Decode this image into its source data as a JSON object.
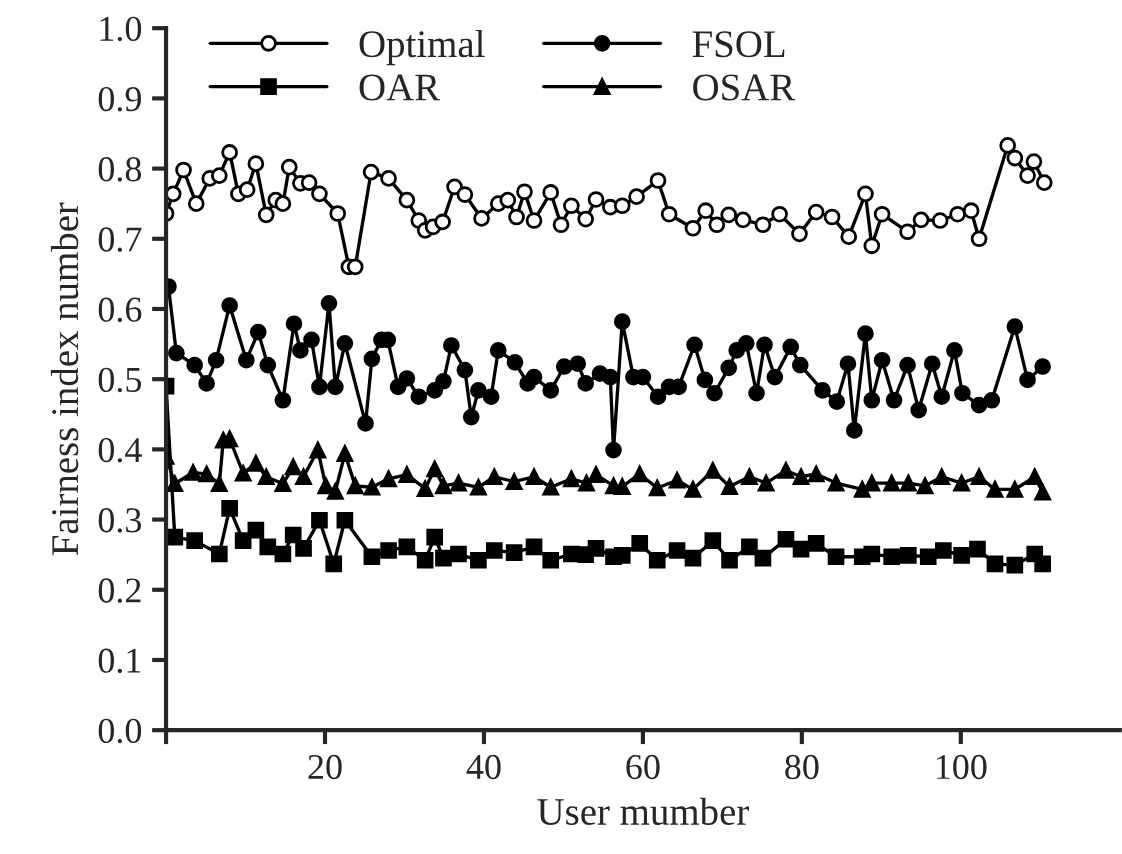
{
  "chart_data": {
    "type": "line",
    "xlabel": "User mumber",
    "ylabel": "Fairness index number",
    "xlim": [
      0,
      120
    ],
    "xticks": [
      {
        "value": 0,
        "label": null
      },
      20,
      40,
      60,
      80,
      100
    ],
    "ylim": [
      0,
      1
    ],
    "yticks": [
      {
        "value": 0,
        "label": "0.0"
      },
      {
        "value": 0.1,
        "label": "0.1"
      },
      {
        "value": 0.2,
        "label": "0.2"
      },
      {
        "value": 0.3,
        "label": "0.3"
      },
      {
        "value": 0.4,
        "label": "0.4"
      },
      {
        "value": 0.5,
        "label": "0.5"
      },
      {
        "value": 0.6,
        "label": "0.6"
      },
      {
        "value": 0.7,
        "label": "0.7"
      },
      {
        "value": 0.8,
        "label": "0.8"
      },
      {
        "value": 0.9,
        "label": "0.9"
      },
      {
        "value": 1.0,
        "label": "1.0"
      }
    ],
    "grid": false,
    "legend": "top left",
    "line_style": "solid",
    "series": [
      {
        "name": "Optimal",
        "color": "#000000",
        "marker": "circle",
        "x": [
          0,
          0.9,
          2.2,
          3.8,
          5.5,
          6.7,
          8,
          9.1,
          10.2,
          11.3,
          12.6,
          13.8,
          14.7,
          15.5,
          16.9,
          18,
          19.3,
          21.6,
          23,
          23.8,
          25.8,
          28,
          30.3,
          31.8,
          32.6,
          33.6,
          34.8,
          36.3,
          37.6,
          39.7,
          41.8,
          43,
          44.1,
          45.1,
          46.3,
          48.4,
          49.7,
          51,
          52.8,
          54.1,
          55.9,
          57.4,
          59.2,
          61.9,
          63.3,
          66.3,
          67.9,
          69.3,
          70.8,
          72.6,
          75.1,
          77.2,
          79.7,
          81.8,
          83.8,
          85.9,
          88,
          88.8,
          90.1,
          93.3,
          95,
          97.4,
          99.6,
          101.3,
          102.3,
          105.9,
          106.8,
          108.4,
          109.2,
          110.5
        ],
        "values": [
          0.736,
          0.764,
          0.798,
          0.75,
          0.786,
          0.79,
          0.823,
          0.764,
          0.77,
          0.807,
          0.734,
          0.755,
          0.75,
          0.802,
          0.779,
          0.78,
          0.764,
          0.736,
          0.66,
          0.66,
          0.795,
          0.786,
          0.755,
          0.726,
          0.712,
          0.717,
          0.724,
          0.774,
          0.763,
          0.729,
          0.75,
          0.755,
          0.731,
          0.767,
          0.726,
          0.766,
          0.72,
          0.747,
          0.728,
          0.756,
          0.745,
          0.747,
          0.76,
          0.783,
          0.735,
          0.715,
          0.74,
          0.72,
          0.734,
          0.727,
          0.72,
          0.735,
          0.707,
          0.738,
          0.731,
          0.703,
          0.764,
          0.69,
          0.735,
          0.71,
          0.727,
          0.726,
          0.735,
          0.74,
          0.7,
          0.833,
          0.815,
          0.79,
          0.81,
          0.78
        ]
      },
      {
        "name": "FSOL",
        "color": "#000000",
        "marker": "circle",
        "x": [
          0.3,
          1.3,
          3.6,
          5.1,
          6.3,
          8,
          10.1,
          11.6,
          12.8,
          14.7,
          16.1,
          16.9,
          18.3,
          19.3,
          20.5,
          21.3,
          22.5,
          25.1,
          25.9,
          27.1,
          27.9,
          29.2,
          30.3,
          31.8,
          33.8,
          34.9,
          35.9,
          37.6,
          38.4,
          39.3,
          40.9,
          41.8,
          43.9,
          45.5,
          46.3,
          48.4,
          50.1,
          51.8,
          52.8,
          54.6,
          55.9,
          56.3,
          57.4,
          58.8,
          60,
          61.9,
          63.3,
          64.5,
          66.5,
          67.8,
          69,
          70.8,
          71.8,
          73,
          74.3,
          75.3,
          76.6,
          78.6,
          79.8,
          82.6,
          84.4,
          85.8,
          86.6,
          88,
          88.8,
          90.1,
          91.6,
          93.3,
          94.7,
          96.4,
          97.6,
          99.2,
          100.2,
          102.3,
          103.9,
          106.8,
          108.4,
          110.3
        ],
        "values": [
          0.632,
          0.537,
          0.52,
          0.494,
          0.527,
          0.605,
          0.527,
          0.567,
          0.52,
          0.47,
          0.579,
          0.541,
          0.556,
          0.489,
          0.608,
          0.489,
          0.551,
          0.437,
          0.529,
          0.556,
          0.556,
          0.489,
          0.501,
          0.475,
          0.484,
          0.497,
          0.548,
          0.513,
          0.446,
          0.484,
          0.475,
          0.541,
          0.524,
          0.494,
          0.503,
          0.484,
          0.518,
          0.522,
          0.494,
          0.508,
          0.503,
          0.399,
          0.582,
          0.503,
          0.503,
          0.475,
          0.489,
          0.489,
          0.549,
          0.499,
          0.48,
          0.516,
          0.541,
          0.551,
          0.48,
          0.549,
          0.503,
          0.546,
          0.52,
          0.484,
          0.468,
          0.522,
          0.427,
          0.565,
          0.47,
          0.527,
          0.47,
          0.52,
          0.456,
          0.522,
          0.475,
          0.541,
          0.48,
          0.463,
          0.47,
          0.575,
          0.499,
          0.518
        ]
      },
      {
        "name": "OAR",
        "color": "#000000",
        "marker": "square",
        "x": [
          0,
          1.1,
          3.6,
          6.7,
          8,
          9.7,
          11.3,
          12.8,
          14.7,
          16,
          17.3,
          19.3,
          21.1,
          22.5,
          25.9,
          28,
          30.3,
          32.6,
          33.8,
          34.9,
          36.8,
          39.3,
          41.3,
          43.8,
          46.3,
          48.4,
          51,
          52.8,
          54.1,
          56.3,
          57.4,
          59.6,
          61.8,
          64.3,
          66.3,
          68.8,
          70.9,
          73.4,
          75.1,
          78,
          79.9,
          81.8,
          84.3,
          87.6,
          88.8,
          91.3,
          93.4,
          95.9,
          97.8,
          100.1,
          102.1,
          104.3,
          106.8,
          109.3,
          110.3
        ],
        "values": [
          0.49,
          0.275,
          0.27,
          0.251,
          0.316,
          0.27,
          0.285,
          0.261,
          0.251,
          0.278,
          0.259,
          0.299,
          0.237,
          0.299,
          0.247,
          0.256,
          0.261,
          0.242,
          0.275,
          0.245,
          0.251,
          0.242,
          0.256,
          0.253,
          0.261,
          0.242,
          0.251,
          0.25,
          0.259,
          0.247,
          0.249,
          0.266,
          0.242,
          0.256,
          0.245,
          0.27,
          0.242,
          0.261,
          0.245,
          0.272,
          0.258,
          0.266,
          0.247,
          0.247,
          0.251,
          0.247,
          0.249,
          0.247,
          0.256,
          0.249,
          0.258,
          0.237,
          0.235,
          0.251,
          0.237
        ]
      },
      {
        "name": "OSAR",
        "color": "#000000",
        "marker": "triangle",
        "x": [
          0,
          1.1,
          3.4,
          5.1,
          6.7,
          7.2,
          8,
          9.7,
          11.3,
          12.6,
          14.7,
          16,
          17.3,
          19.1,
          20.1,
          21.3,
          22.5,
          23.8,
          25.9,
          28,
          30.3,
          32.6,
          33.8,
          34.9,
          36.8,
          39.3,
          41.3,
          43.8,
          46.3,
          48.4,
          51,
          52.9,
          54.1,
          56.3,
          57.4,
          59.6,
          61.8,
          64.3,
          66.3,
          68.8,
          70.9,
          73.4,
          75.5,
          78,
          79.9,
          81.8,
          84.3,
          87.6,
          88.8,
          91.3,
          93.4,
          95.5,
          97.6,
          100.1,
          102.3,
          104.3,
          106.8,
          109.3,
          110.3
        ],
        "values": [
          0.39,
          0.351,
          0.367,
          0.365,
          0.351,
          0.413,
          0.415,
          0.366,
          0.38,
          0.361,
          0.351,
          0.375,
          0.361,
          0.399,
          0.348,
          0.34,
          0.394,
          0.348,
          0.346,
          0.358,
          0.364,
          0.344,
          0.372,
          0.348,
          0.352,
          0.346,
          0.361,
          0.354,
          0.361,
          0.346,
          0.358,
          0.352,
          0.364,
          0.348,
          0.347,
          0.365,
          0.345,
          0.356,
          0.343,
          0.37,
          0.347,
          0.361,
          0.352,
          0.37,
          0.361,
          0.365,
          0.352,
          0.343,
          0.352,
          0.352,
          0.352,
          0.348,
          0.361,
          0.352,
          0.361,
          0.343,
          0.343,
          0.361,
          0.339
        ]
      }
    ]
  }
}
